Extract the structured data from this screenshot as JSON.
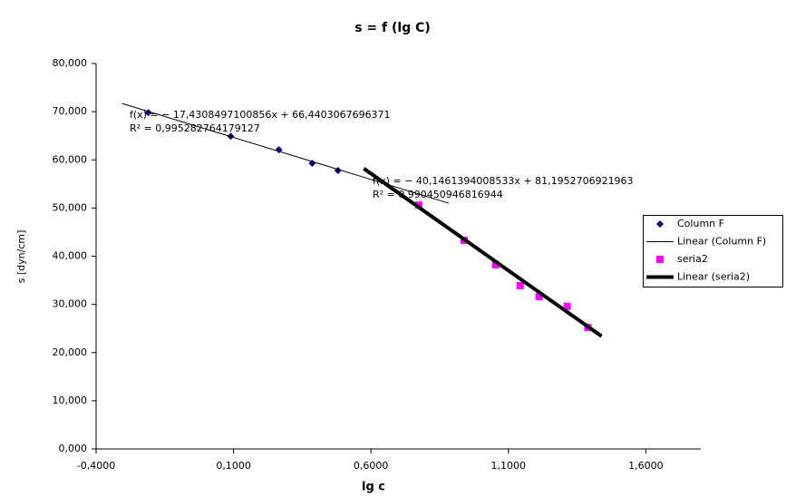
{
  "chart_data": {
    "type": "scatter",
    "title": "s = f (lg C)",
    "x_label": "lg c",
    "y_label": "s [dyn/cm]",
    "xlim": [
      -0.4,
      1.8
    ],
    "xticks": [
      {
        "value": -0.4,
        "label": "-0,4000"
      },
      {
        "value": 0.1,
        "label": "0,1000"
      },
      {
        "value": 0.6,
        "label": "0,6000"
      },
      {
        "value": 1.1,
        "label": "1,1000"
      },
      {
        "value": 1.6,
        "label": "1,6000"
      }
    ],
    "ylim": [
      0,
      80
    ],
    "yticks": [
      {
        "value": 0,
        "label": "0,000"
      },
      {
        "value": 10,
        "label": "10,000"
      },
      {
        "value": 20,
        "label": "20,000"
      },
      {
        "value": 30,
        "label": "30,000"
      },
      {
        "value": 40,
        "label": "40,000"
      },
      {
        "value": 50,
        "label": "50,000"
      },
      {
        "value": 60,
        "label": "60,000"
      },
      {
        "value": 70,
        "label": "70,000"
      },
      {
        "value": 80,
        "label": "80,000"
      }
    ],
    "grid": false,
    "legend": "right",
    "series": [
      {
        "name": "Column F",
        "color": "#000080",
        "marker": "diamond",
        "x": [
          -0.21,
          0.09,
          0.265,
          0.386,
          0.48
        ],
        "values": [
          69.8,
          64.9,
          62.1,
          59.3,
          57.8
        ]
      },
      {
        "name": "Linear (Column F)",
        "color": "#000000",
        "marker": "none",
        "line_width": 1,
        "x": [
          -0.305,
          0.883
        ],
        "values": [
          71.7,
          51.0
        ]
      },
      {
        "name": "seria2",
        "color": "#ff00ff",
        "marker": "square",
        "x": [
          0.774,
          0.939,
          1.054,
          1.143,
          1.212,
          1.314,
          1.389
        ],
        "values": [
          50.6,
          43.3,
          38.2,
          33.9,
          31.6,
          29.6,
          25.2
        ]
      },
      {
        "name": "Linear (seria2)",
        "color": "#000000",
        "marker": "none",
        "line_width": 4,
        "x": [
          0.574,
          1.439
        ],
        "values": [
          58.2,
          23.4
        ]
      }
    ],
    "annotations": [
      "f(x) = − 17,4308497100856x + 66,4403067696371",
      "R² = 0,995282764179127",
      "f(x) = − 40,1461394008533x + 81,1952706921963",
      "R² = 0,990450946816944"
    ]
  }
}
